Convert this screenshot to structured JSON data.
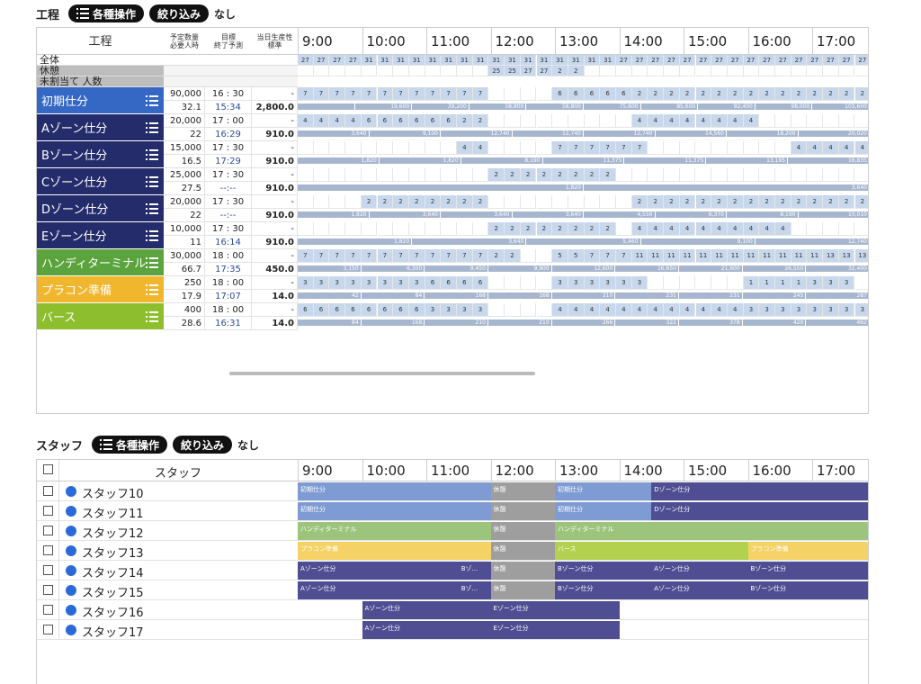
{
  "process": {
    "title": "工程",
    "ops_label": "各種操作",
    "filter_label": "絞り込み",
    "none_label": "なし"
  },
  "proc_header": {
    "process": "工程",
    "qty": "予定数量",
    "qty_sub": "必要人時",
    "target": "目標",
    "target_sub": "終了予測",
    "prod": "当日生産性",
    "prod_sub": "標準"
  },
  "hours": [
    "9:00",
    "10:00",
    "11:00",
    "12:00",
    "13:00",
    "14:00",
    "15:00",
    "16:00",
    "17:00"
  ],
  "summary": [
    {
      "label": "全体",
      "values": [
        "27",
        "27",
        "27",
        "27",
        "31",
        "31",
        "31",
        "31",
        "31",
        "31",
        "31",
        "31",
        "31",
        "31",
        "31",
        "31",
        "31",
        "31",
        "31",
        "31",
        "27",
        "27",
        "27",
        "27",
        "27",
        "27",
        "27",
        "27",
        "27",
        "27",
        "27",
        "27",
        "27",
        "27",
        "27",
        "27"
      ]
    },
    {
      "label": "休憩",
      "values": [
        "",
        "",
        "",
        "",
        "",
        "",
        "",
        "",
        "",
        "",
        "",
        "",
        "25",
        "25",
        "27",
        "27",
        "2",
        "2",
        "",
        "",
        "",
        "",
        "",
        "",
        "",
        "",
        "",
        "",
        "",
        "",
        "",
        "",
        "",
        "",
        "",
        ""
      ]
    },
    {
      "label": "未割当て 人数",
      "values": []
    }
  ],
  "zones": [
    {
      "name": "初期仕分",
      "color": "#3468c4",
      "qty": "90,000",
      "hours": "32.1",
      "target": "16 : 30",
      "pred": "15:34",
      "prod": "2,800.0",
      "cells": [
        "7",
        "7",
        "7",
        "7",
        "7",
        "7",
        "7",
        "7",
        "7",
        "7",
        "7",
        "7",
        "",
        "",
        "",
        "",
        "6",
        "6",
        "6",
        "6",
        "6",
        "2",
        "2",
        "2",
        "2",
        "2",
        "2",
        "2",
        "2",
        "2",
        "2",
        "2",
        "2",
        "2",
        "2",
        "2"
      ],
      "bars": [
        "",
        "19,600",
        "39,200",
        "58,800",
        "58,800",
        "75,600",
        "85,600",
        "92,400",
        "98,000",
        "103,600"
      ]
    },
    {
      "name": "Aゾーン仕分",
      "color": "#252c6b",
      "qty": "20,000",
      "hours": "22",
      "target": "17 : 00",
      "pred": "16:29",
      "prod": "910.0",
      "cells": [
        "4",
        "4",
        "4",
        "4",
        "6",
        "6",
        "6",
        "6",
        "6",
        "6",
        "2",
        "2",
        "",
        "",
        "",
        "",
        "",
        "",
        "",
        "",
        "",
        "4",
        "4",
        "4",
        "4",
        "4",
        "4",
        "4",
        "4",
        "",
        "",
        "",
        "",
        "",
        "",
        ""
      ],
      "bars": [
        "3,640",
        "9,100",
        "12,740",
        "12,740",
        "12,740",
        "14,560",
        "18,200",
        "20,020"
      ]
    },
    {
      "name": "Bゾーン仕分",
      "color": "#252c6b",
      "qty": "15,000",
      "hours": "16.5",
      "target": "17 : 30",
      "pred": "17:29",
      "prod": "910.0",
      "cells": [
        "",
        "",
        "",
        "",
        "",
        "",
        "",
        "",
        "",
        "",
        "4",
        "4",
        "",
        "",
        "",
        "",
        "7",
        "7",
        "7",
        "7",
        "7",
        "7",
        "",
        "",
        "",
        "",
        "",
        "",
        "",
        "",
        "",
        "4",
        "4",
        "4",
        "4",
        "4"
      ],
      "bars": [
        "1,820",
        "1,820",
        "8,190",
        "11,375",
        "11,375",
        "13,195",
        "16,835"
      ]
    },
    {
      "name": "Cゾーン仕分",
      "color": "#252c6b",
      "qty": "25,000",
      "hours": "27.5",
      "target": "17 : 30",
      "pred": "--:--",
      "prod": "910.0",
      "cells": [
        "",
        "",
        "",
        "",
        "",
        "",
        "",
        "",
        "",
        "",
        "",
        "",
        "2",
        "2",
        "2",
        "2",
        "2",
        "2",
        "2",
        "2",
        "",
        "",
        "",
        "",
        "",
        "",
        "",
        "",
        "",
        "",
        "",
        "",
        "",
        "",
        "",
        ""
      ],
      "bars": [
        "1,820",
        "3,640"
      ]
    },
    {
      "name": "Dゾーン仕分",
      "color": "#252c6b",
      "qty": "20,000",
      "hours": "22",
      "target": "17 : 30",
      "pred": "--:--",
      "prod": "910.0",
      "cells": [
        "",
        "",
        "",
        "",
        "2",
        "2",
        "2",
        "2",
        "2",
        "2",
        "2",
        "2",
        "",
        "",
        "",
        "",
        "",
        "",
        "",
        "",
        "",
        "2",
        "2",
        "2",
        "2",
        "2",
        "2",
        "2",
        "2",
        "2",
        "2",
        "2",
        "2",
        "2",
        "2",
        "2"
      ],
      "bars": [
        "1,820",
        "3,640",
        "3,640",
        "3,640",
        "4,550",
        "6,370",
        "8,190",
        "10,010"
      ]
    },
    {
      "name": "Eゾーン仕分",
      "color": "#252c6b",
      "qty": "10,000",
      "hours": "11",
      "target": "17 : 30",
      "pred": "16:14",
      "prod": "910.0",
      "cells": [
        "",
        "",
        "",
        "",
        "",
        "",
        "",
        "",
        "",
        "",
        "",
        "",
        "2",
        "2",
        "2",
        "2",
        "2",
        "2",
        "2",
        "2",
        "",
        "4",
        "4",
        "4",
        "4",
        "4",
        "4",
        "4",
        "4",
        "4",
        "4",
        "",
        "",
        "",
        "",
        ""
      ],
      "bars": [
        "1,820",
        "3,640",
        "5,460",
        "9,100",
        "12,740"
      ]
    },
    {
      "name": "ハンディターミナル",
      "color": "#5ba33c",
      "qty": "30,000",
      "hours": "66.7",
      "target": "18 : 00",
      "pred": "17:35",
      "prod": "450.0",
      "cells": [
        "7",
        "7",
        "7",
        "7",
        "7",
        "7",
        "7",
        "7",
        "7",
        "7",
        "7",
        "7",
        "2",
        "2",
        "",
        "",
        "5",
        "5",
        "7",
        "7",
        "7",
        "11",
        "11",
        "11",
        "11",
        "11",
        "11",
        "11",
        "11",
        "11",
        "11",
        "11",
        "11",
        "13",
        "13",
        "13"
      ],
      "bars": [
        "3,150",
        "6,300",
        "9,450",
        "9,900",
        "12,600",
        "16,650",
        "21,600",
        "26,550",
        "32,400"
      ]
    },
    {
      "name": "プラコン準備",
      "color": "#f0b62d",
      "qty": "250",
      "hours": "17.9",
      "target": "18 : 00",
      "pred": "17:07",
      "prod": "14.0",
      "cells": [
        "3",
        "3",
        "3",
        "3",
        "3",
        "3",
        "3",
        "3",
        "6",
        "6",
        "6",
        "6",
        "",
        "",
        "",
        "",
        "3",
        "3",
        "3",
        "3",
        "3",
        "3",
        "",
        "",
        "",
        "",
        "",
        "",
        "1",
        "1",
        "1",
        "1",
        "3",
        "3",
        "3",
        ""
      ],
      "bars": [
        "42",
        "84",
        "168",
        "168",
        "210",
        "231",
        "231",
        "245",
        "287"
      ]
    },
    {
      "name": "バース",
      "color": "#8cbe2e",
      "qty": "400",
      "hours": "28.6",
      "target": "18 : 00",
      "pred": "16:31",
      "prod": "14.0",
      "cells": [
        "6",
        "6",
        "6",
        "6",
        "6",
        "6",
        "6",
        "6",
        "3",
        "3",
        "3",
        "3",
        "",
        "",
        "",
        "",
        "4",
        "4",
        "4",
        "4",
        "4",
        "4",
        "4",
        "4",
        "4",
        "4",
        "4",
        "4",
        "3",
        "3",
        "3",
        "3",
        "3",
        "3",
        "3",
        "3"
      ],
      "bars": [
        "84",
        "168",
        "210",
        "210",
        "266",
        "322",
        "378",
        "420",
        "462"
      ]
    }
  ],
  "staff_section": {
    "title": "スタッフ",
    "ops_label": "各種操作",
    "filter_label": "絞り込み",
    "none_label": "なし",
    "col": "スタッフ"
  },
  "staff": [
    {
      "name": "スタッフ10",
      "segs": [
        {
          "label": "初期仕分",
          "color": "#7f9bd3"
        },
        {
          "label": "休憩",
          "color": "#9e9e9e"
        },
        {
          "label": "初期仕分",
          "color": "#7f9bd3"
        },
        {
          "label": "Dゾーン仕分",
          "color": "#4f4e93"
        }
      ]
    },
    {
      "name": "スタッフ11",
      "segs": [
        {
          "label": "初期仕分",
          "color": "#7f9bd3"
        },
        {
          "label": "休憩",
          "color": "#9e9e9e"
        },
        {
          "label": "初期仕分",
          "color": "#7f9bd3"
        },
        {
          "label": "Dゾーン仕分",
          "color": "#4f4e93"
        }
      ]
    },
    {
      "name": "スタッフ12",
      "segs": [
        {
          "label": "ハンディターミナル",
          "color": "#9dc47d"
        },
        {
          "label": "休憩",
          "color": "#9e9e9e"
        },
        {
          "label": "ハンディターミナル",
          "color": "#9dc47d"
        }
      ]
    },
    {
      "name": "スタッフ13",
      "segs": [
        {
          "label": "プラコン準備",
          "color": "#f5d265"
        },
        {
          "label": "休憩",
          "color": "#9e9e9e"
        },
        {
          "label": "バース",
          "color": "#b3d14f"
        },
        {
          "label": "プラコン準備",
          "color": "#f5d265"
        }
      ]
    },
    {
      "name": "スタッフ14",
      "segs": [
        {
          "label": "Aゾーン仕分",
          "color": "#4f4e93"
        },
        {
          "label": "Bゾ...",
          "color": "#4f4e93"
        },
        {
          "label": "休憩",
          "color": "#9e9e9e"
        },
        {
          "label": "Bゾーン仕分",
          "color": "#4f4e93"
        },
        {
          "label": "Aゾーン仕分",
          "color": "#4f4e93"
        },
        {
          "label": "Bゾーン仕分",
          "color": "#4f4e93"
        }
      ]
    },
    {
      "name": "スタッフ15",
      "segs": [
        {
          "label": "Aゾーン仕分",
          "color": "#4f4e93"
        },
        {
          "label": "Bゾ...",
          "color": "#4f4e93"
        },
        {
          "label": "休憩",
          "color": "#9e9e9e"
        },
        {
          "label": "Bゾーン仕分",
          "color": "#4f4e93"
        },
        {
          "label": "Aゾーン仕分",
          "color": "#4f4e93"
        },
        {
          "label": "Bゾーン仕分",
          "color": "#4f4e93"
        }
      ]
    },
    {
      "name": "スタッフ16",
      "segs": [
        {
          "label": "Aゾーン仕分",
          "color": "#4f4e93"
        },
        {
          "label": "Eゾーン仕分",
          "color": "#4f4e93"
        }
      ]
    },
    {
      "name": "スタッフ17",
      "segs": [
        {
          "label": "Aゾーン仕分",
          "color": "#4f4e93"
        },
        {
          "label": "Eゾーン仕分",
          "color": "#4f4e93"
        }
      ]
    }
  ]
}
